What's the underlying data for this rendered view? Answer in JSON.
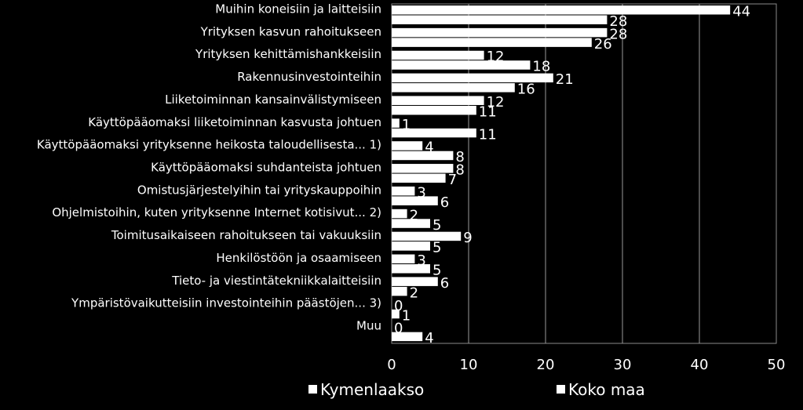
{
  "chart_data": {
    "type": "bar",
    "orientation": "horizontal",
    "categories": [
      "Muihin koneisiin ja laitteisiin",
      "Yrityksen kasvun rahoitukseen",
      "Yrityksen kehittämishankkeisiin",
      "Rakennusinvestointeihin",
      "Liiketoiminnan kansainvälistymiseen",
      "Käyttöpääomaksi liiketoiminnan kasvusta johtuen",
      "Käyttöpääomaksi yrityksenne heikosta taloudellisesta... 1)",
      "Käyttöpääomaksi suhdanteista johtuen",
      "Omistusjärjestelyihin tai yrityskauppoihin",
      "Ohjelmistoihin, kuten yrityksenne Internet kotisivut... 2)",
      "Toimitusaikaiseen rahoitukseen tai vakuuksiin",
      "Henkilöstöön ja osaamiseen",
      "Tieto- ja viestintätekniikkalaitteisiin",
      "Ympäristövaikutteisiin investointeihin päästöjen... 3)",
      "Muu"
    ],
    "series": [
      {
        "name": "Kymenlaakso",
        "values": [
          44,
          28,
          12,
          21,
          12,
          1,
          4,
          8,
          3,
          2,
          9,
          3,
          6,
          0,
          0
        ]
      },
      {
        "name": "Koko maa",
        "values": [
          28,
          26,
          18,
          16,
          11,
          11,
          8,
          7,
          6,
          5,
          5,
          5,
          2,
          1,
          4
        ]
      }
    ],
    "x_ticks": [
      "0",
      "10",
      "20",
      "30",
      "40",
      "50"
    ],
    "xlim": [
      0,
      50
    ],
    "grid": true,
    "legend_position": "bottom",
    "colors": {
      "background": "#000000",
      "bars": "#ffffff",
      "text": "#ffffff",
      "grid": "#ffffff"
    }
  }
}
